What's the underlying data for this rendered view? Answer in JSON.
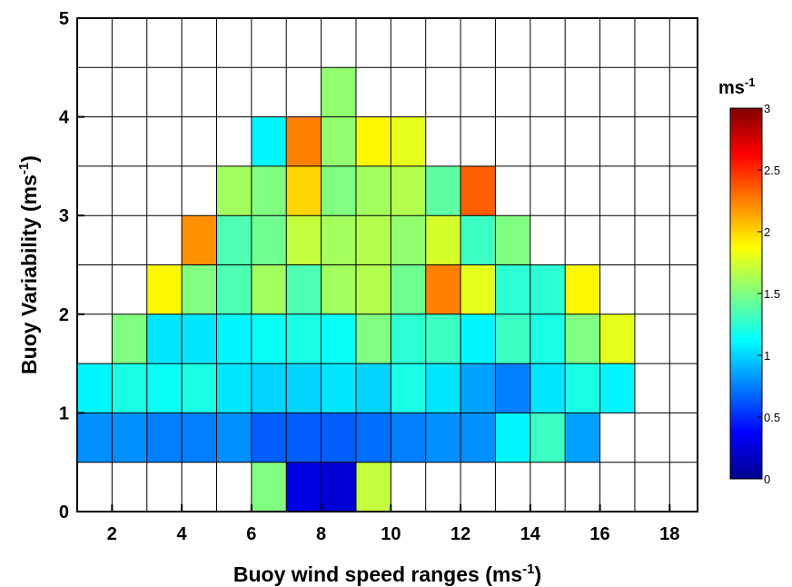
{
  "chart_data": {
    "type": "heatmap",
    "title": "",
    "xlabel": "Buoy wind speed ranges (ms",
    "xlabel_sup": "-1",
    "xlabel_tail": ")",
    "ylabel": "Buoy Variability (ms",
    "ylabel_sup": "-1",
    "ylabel_tail": ")",
    "xlim": [
      1,
      18.8
    ],
    "ylim": [
      0,
      5
    ],
    "x_ticks": [
      2,
      4,
      6,
      8,
      10,
      12,
      14,
      16,
      18
    ],
    "x_tick_labels": [
      "2",
      "4",
      "6",
      "8",
      "10",
      "12",
      "14",
      "16",
      "18"
    ],
    "y_ticks": [
      0,
      1,
      2,
      3,
      4,
      5
    ],
    "y_tick_labels": [
      "0",
      "1",
      "2",
      "3",
      "4",
      "5"
    ],
    "x_bin_edges": [
      1,
      2,
      3,
      4,
      5,
      6,
      7,
      8,
      9,
      10,
      11,
      12,
      13,
      14,
      15,
      16,
      17,
      18,
      18.8
    ],
    "y_bin_edges": [
      0,
      0.5,
      1,
      1.5,
      2,
      2.5,
      3,
      3.5,
      4,
      4.5,
      5
    ],
    "grid": true,
    "colormap": "jet",
    "clim": [
      0,
      3
    ],
    "colorbar": {
      "title": "ms",
      "title_sup": "-1",
      "ticks": [
        0,
        0.5,
        1,
        1.5,
        2,
        2.5,
        3
      ],
      "tick_labels": [
        "0",
        "0.5",
        "1",
        "1.5",
        "2",
        "2.5",
        "3"
      ],
      "placement": "right"
    },
    "cells_note": "rows listed from y=0-0.5 upward; columns = x bins starting at 1; null = no data",
    "values": [
      [
        null,
        null,
        null,
        null,
        null,
        1.5,
        0.3,
        0.25,
        1.7,
        null,
        null,
        null,
        null,
        null,
        null,
        null,
        null,
        null
      ],
      [
        0.8,
        0.8,
        0.75,
        0.75,
        0.8,
        0.65,
        0.65,
        0.65,
        0.7,
        0.75,
        0.8,
        0.8,
        1.1,
        1.3,
        0.85,
        null,
        null,
        null
      ],
      [
        1.1,
        1.2,
        1.15,
        1.2,
        1.05,
        1.0,
        1.0,
        1.05,
        1.0,
        1.2,
        1.05,
        0.85,
        0.75,
        1.05,
        1.2,
        1.1,
        null,
        null
      ],
      [
        null,
        1.5,
        1.05,
        1.05,
        1.1,
        1.15,
        1.2,
        1.15,
        1.5,
        1.25,
        1.3,
        1.1,
        1.3,
        1.2,
        1.5,
        1.8,
        null,
        null
      ],
      [
        null,
        null,
        1.9,
        1.5,
        1.35,
        1.6,
        1.35,
        1.6,
        1.65,
        1.45,
        2.25,
        1.8,
        1.25,
        1.25,
        1.9,
        null,
        null,
        null
      ],
      [
        null,
        null,
        null,
        2.2,
        1.35,
        1.45,
        1.7,
        1.6,
        1.65,
        1.55,
        1.75,
        1.3,
        1.5,
        null,
        null,
        null,
        null,
        null
      ],
      [
        null,
        null,
        null,
        null,
        1.6,
        1.5,
        2.0,
        1.5,
        1.6,
        1.65,
        1.4,
        2.35,
        null,
        null,
        null,
        null,
        null,
        null
      ],
      [
        null,
        null,
        null,
        null,
        null,
        1.1,
        2.25,
        1.55,
        1.9,
        1.8,
        null,
        null,
        null,
        null,
        null,
        null,
        null,
        null
      ],
      [
        null,
        null,
        null,
        null,
        null,
        null,
        null,
        1.55,
        null,
        null,
        null,
        null,
        null,
        null,
        null,
        null,
        null,
        null
      ],
      [
        null,
        null,
        null,
        null,
        null,
        null,
        null,
        null,
        null,
        null,
        null,
        null,
        null,
        null,
        null,
        null,
        null,
        null
      ]
    ]
  }
}
